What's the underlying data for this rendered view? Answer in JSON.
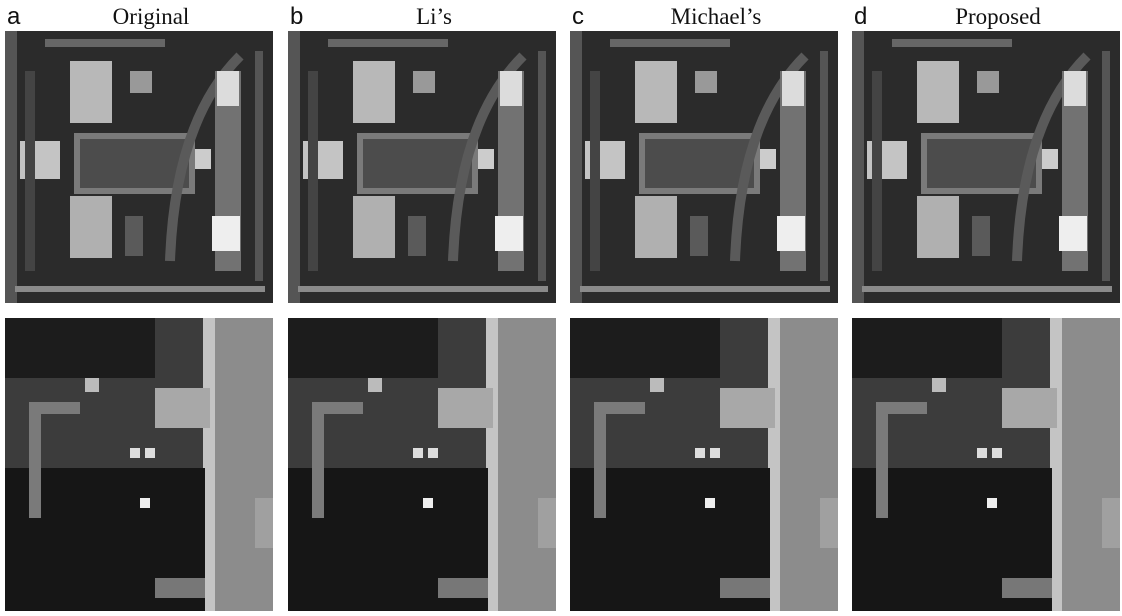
{
  "panels": [
    {
      "letter": "a",
      "title": "Original"
    },
    {
      "letter": "b",
      "title": "Li’s"
    },
    {
      "letter": "c",
      "title": "Michael’s"
    },
    {
      "letter": "d",
      "title": "Proposed"
    }
  ]
}
